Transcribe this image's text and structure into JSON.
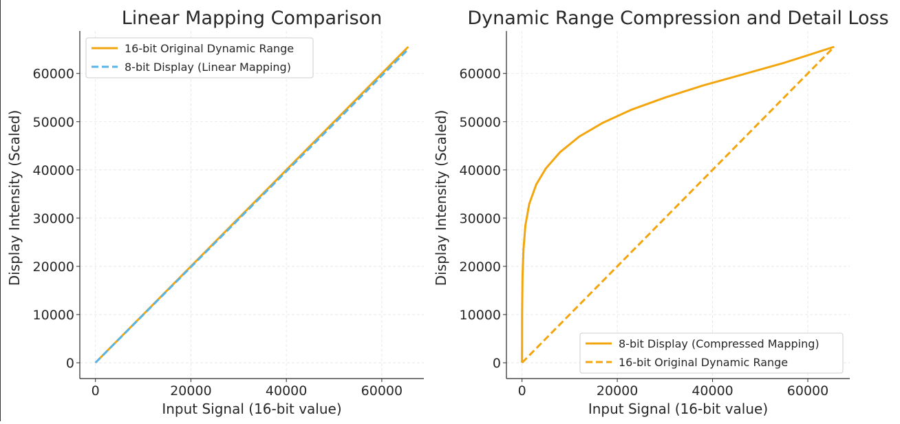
{
  "chart_data": [
    {
      "type": "line",
      "title": "Linear Mapping Comparison",
      "xlabel": "Input Signal (16-bit value)",
      "ylabel": "Display Intensity (Scaled)",
      "xlim": [
        -3277,
        68812
      ],
      "ylim": [
        -3277,
        68812
      ],
      "xticks": [
        0,
        20000,
        40000,
        60000
      ],
      "yticks": [
        0,
        10000,
        20000,
        30000,
        40000,
        50000,
        60000
      ],
      "grid": true,
      "legend_position": "top-left",
      "series": [
        {
          "name": "16-bit Original Dynamic Range",
          "color": "#f2a50c",
          "dash": "solid",
          "x": [
            0,
            65535
          ],
          "y": [
            0,
            65535
          ]
        },
        {
          "name": "8-bit Display (Linear Mapping)",
          "color": "#56b4e9",
          "dash": "dashed",
          "x": [
            0,
            65535
          ],
          "y": [
            0,
            65025
          ]
        }
      ]
    },
    {
      "type": "line",
      "title": "Dynamic Range Compression and Detail Loss",
      "xlabel": "Input Signal (16-bit value)",
      "ylabel": "Display Intensity (Scaled)",
      "xlim": [
        -3277,
        68812
      ],
      "ylim": [
        -3277,
        68812
      ],
      "xticks": [
        0,
        20000,
        40000,
        60000
      ],
      "yticks": [
        0,
        10000,
        20000,
        30000,
        40000,
        50000,
        60000
      ],
      "grid": true,
      "legend_position": "bottom-right",
      "series": [
        {
          "name": "8-bit Display (Compressed Mapping)",
          "color": "#f2a50c",
          "dash": "solid",
          "x": [
            0,
            10,
            100,
            300,
            700,
            1500,
            3000,
            5000,
            8000,
            12000,
            17000,
            23000,
            30000,
            38000,
            46000,
            55000,
            65535
          ],
          "y": [
            0,
            10238,
            17885,
            23500,
            28400,
            32914,
            37000,
            40300,
            43700,
            46900,
            49800,
            52500,
            55000,
            57500,
            59700,
            62200,
            65535
          ]
        },
        {
          "name": "16-bit Original Dynamic Range",
          "color": "#f2a50c",
          "dash": "dashed",
          "x": [
            0,
            65535
          ],
          "y": [
            0,
            65535
          ]
        }
      ]
    }
  ]
}
